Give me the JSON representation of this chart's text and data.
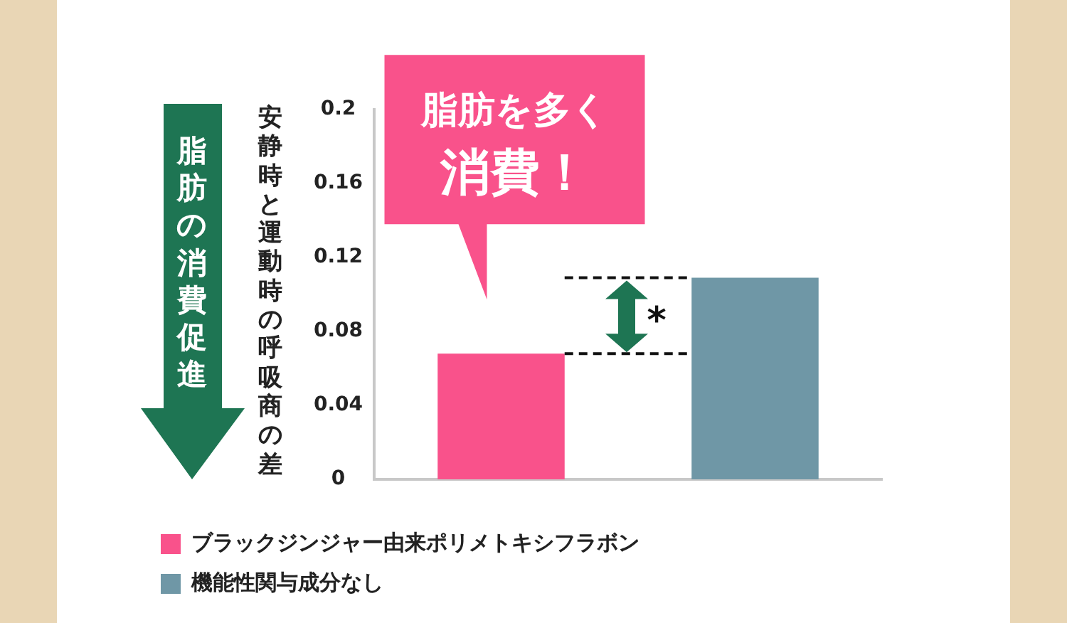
{
  "chart_data": {
    "type": "bar",
    "categories": [
      null
    ],
    "series": [
      {
        "name": "ブラックジンジャー由来ポリメトキシフラボン",
        "color": "#f9528b",
        "values": [
          0.068
        ]
      },
      {
        "name": "機能性関与成分なし",
        "color": "#6f97a6",
        "values": [
          0.109
        ]
      }
    ],
    "ylabel": "安静時と運動時の呼吸商の差",
    "ylim": [
      0,
      0.2
    ],
    "yticks": [
      0,
      0.04,
      0.08,
      0.12,
      0.16,
      0.2
    ],
    "grid": false,
    "legend": "bottom left",
    "annotations": [
      "脂肪を多く",
      "消費！",
      "脂肪の消費促進",
      "*"
    ]
  }
}
